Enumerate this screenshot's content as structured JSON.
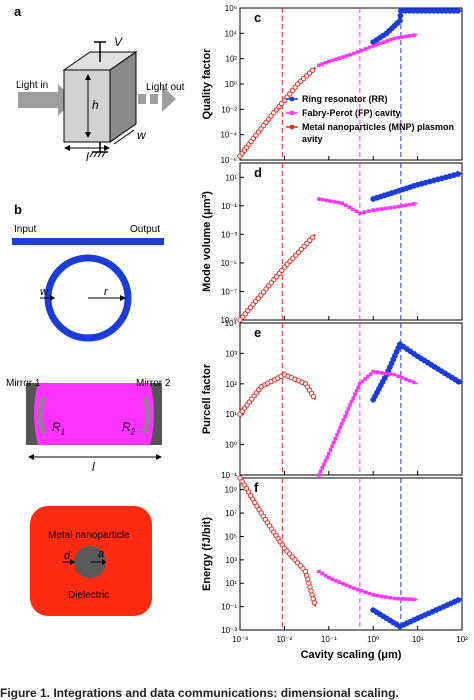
{
  "panel_labels": {
    "a": "a",
    "b": "b",
    "c": "c",
    "d": "d",
    "e": "e",
    "f": "f"
  },
  "panel_a": {
    "voltage": "V",
    "light_in": "Light in",
    "light_out": "Light out",
    "height": "h",
    "width": "w",
    "length": "l"
  },
  "panel_b_ring": {
    "input": "Input",
    "output": "Output",
    "w": "w",
    "r": "r"
  },
  "panel_b_fp": {
    "mirror1": "Mirror 1",
    "mirror2": "Mirror 2",
    "r1": "R",
    "r1_sub": "1",
    "r2": "R",
    "r2_sub": "2",
    "l": "l"
  },
  "panel_b_mnp": {
    "metal": "Metal nanoparticle",
    "dielectric": "Dielectric",
    "d": "d",
    "a": "a"
  },
  "colors": {
    "ring": "#1a3cdb",
    "fp": "#ff33ff",
    "mnp": "#e8281e",
    "mnp_fill": "#ff2a12"
  },
  "chart_data": [
    {
      "type": "line",
      "panel": "c",
      "ylabel": "Quality factor",
      "ylog": true,
      "ylim_exp": [
        -6,
        6
      ],
      "legend": [
        "Ring resonator (RR)",
        "Fabry-Perot (FP) cavity",
        "Metal nanoparticles (MNP) plasmon cavity"
      ],
      "series": [
        {
          "name": "Ring resonator (RR)",
          "x": [
            1,
            2,
            4,
            4.2,
            10,
            100
          ],
          "y": [
            2000,
            10000,
            100000,
            600000,
            600000,
            600000
          ]
        },
        {
          "name": "Fabry-Perot (FP) cavity",
          "x": [
            0.06,
            0.1,
            0.3,
            1,
            3,
            10
          ],
          "y": [
            30,
            60,
            200,
            1000,
            4000,
            8000
          ]
        },
        {
          "name": "Metal nanoparticles (MNP) plasmon cavity",
          "x": [
            0.001,
            0.002,
            0.005,
            0.01,
            0.02,
            0.05
          ],
          "y": [
            2e-06,
            5e-05,
            0.003,
            0.05,
            1,
            20
          ]
        }
      ]
    },
    {
      "type": "line",
      "panel": "d",
      "ylabel": "Mode volume (μm³)",
      "ylog": true,
      "ylim_exp": [
        -9,
        2
      ],
      "series": [
        {
          "name": "Ring resonator (RR)",
          "x": [
            1,
            10,
            100
          ],
          "y": [
            0.3,
            3,
            20
          ]
        },
        {
          "name": "Fabry-Perot (FP) cavity",
          "x": [
            0.06,
            0.2,
            0.5,
            1,
            3,
            10
          ],
          "y": [
            0.3,
            0.15,
            0.03,
            0.05,
            0.08,
            0.15
          ]
        },
        {
          "name": "Metal nanoparticles (MNP) plasmon cavity",
          "x": [
            0.001,
            0.01,
            0.05
          ],
          "y": [
            1e-09,
            5e-06,
            0.001
          ]
        }
      ]
    },
    {
      "type": "line",
      "panel": "e",
      "ylabel": "Purcell factor",
      "ylog": true,
      "ylim_exp": [
        -1,
        4
      ],
      "series": [
        {
          "name": "Ring resonator (RR)",
          "x": [
            1,
            2,
            4,
            10,
            100
          ],
          "y": [
            30,
            200,
            2000,
            800,
            100
          ]
        },
        {
          "name": "Fabry-Perot (FP) cavity",
          "x": [
            0.06,
            0.1,
            0.3,
            0.5,
            1,
            3,
            10
          ],
          "y": [
            0.1,
            0.5,
            20,
            100,
            250,
            200,
            100
          ]
        },
        {
          "name": "Metal nanoparticles (MNP) plasmon cavity",
          "x": [
            0.001,
            0.003,
            0.01,
            0.03,
            0.05
          ],
          "y": [
            10,
            80,
            200,
            100,
            30
          ]
        }
      ]
    },
    {
      "type": "line",
      "panel": "f",
      "ylabel": "Energy (fJ/bit)",
      "xlabel": "Cavity scaling (μm)",
      "ylog": true,
      "ylim_exp": [
        -3,
        10
      ],
      "xticks": [
        "10⁻³",
        "10⁻²",
        "10⁻¹",
        "10⁰",
        "10¹",
        "10²"
      ],
      "series": [
        {
          "name": "Ring resonator (RR)",
          "x": [
            1,
            2,
            4,
            10,
            100
          ],
          "y": [
            0.05,
            0.01,
            0.002,
            0.01,
            0.5
          ]
        },
        {
          "name": "Fabry-Perot (FP) cavity",
          "x": [
            0.06,
            0.1,
            0.3,
            1,
            3,
            10
          ],
          "y": [
            100,
            30,
            5,
            1,
            0.5,
            0.4
          ]
        },
        {
          "name": "Metal nanoparticles (MNP) plasmon cavity",
          "x": [
            0.001,
            0.003,
            0.01,
            0.03,
            0.05
          ],
          "y": [
            10000000000,
            10000000,
            10000,
            100,
            0.1
          ]
        }
      ]
    }
  ],
  "vlines_x": {
    "mnp": 0.009,
    "fp": 0.5,
    "ring": 4.2
  },
  "caption": "Figure 1. Integrations and data communications: dimensional scaling."
}
